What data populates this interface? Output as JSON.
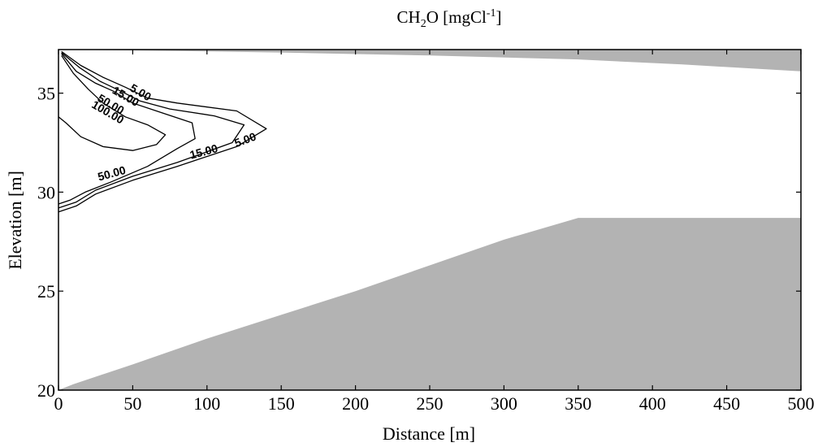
{
  "chart_data": {
    "type": "contour",
    "title": {
      "base": "CH",
      "sub": "2",
      "rest": "O  [mgCl",
      "sup": "-1",
      "end": "]"
    },
    "xlabel": "Distance [m]",
    "ylabel": "Elevation [m]",
    "xlim": [
      0,
      500
    ],
    "ylim": [
      20,
      37.2
    ],
    "xticks": [
      0,
      50,
      100,
      150,
      200,
      250,
      300,
      350,
      400,
      450,
      500
    ],
    "yticks": [
      20,
      25,
      30,
      35
    ],
    "colors": {
      "boundary_fill": "#b3b3b3",
      "contour_line": "#000000"
    },
    "top_boundary": [
      [
        0,
        37.2
      ],
      [
        60,
        37.15
      ],
      [
        150,
        37.05
      ],
      [
        250,
        36.9
      ],
      [
        350,
        36.7
      ],
      [
        420,
        36.45
      ],
      [
        500,
        36.1
      ]
    ],
    "bottom_boundary": [
      [
        0,
        20.0
      ],
      [
        10,
        20.3
      ],
      [
        50,
        21.3
      ],
      [
        100,
        22.6
      ],
      [
        150,
        23.8
      ],
      [
        200,
        25.0
      ],
      [
        250,
        26.3
      ],
      [
        300,
        27.6
      ],
      [
        350,
        28.7
      ],
      [
        500,
        28.7
      ]
    ],
    "contours": [
      {
        "level": "5.00",
        "points": [
          [
            2,
            37.1
          ],
          [
            15,
            36.4
          ],
          [
            30,
            35.8
          ],
          [
            45,
            35.3
          ],
          [
            60,
            34.75
          ],
          [
            80,
            34.5
          ],
          [
            120,
            34.1
          ],
          [
            140,
            33.2
          ],
          [
            120,
            32.3
          ],
          [
            80,
            31.3
          ],
          [
            50,
            30.6
          ],
          [
            25,
            29.9
          ],
          [
            12,
            29.3
          ],
          [
            0,
            29.0
          ]
        ],
        "labels": [
          {
            "x": 55,
            "y": 35.0,
            "angle": 30
          },
          {
            "x": 126,
            "y": 32.6,
            "angle": -20
          }
        ]
      },
      {
        "level": "15.00",
        "points": [
          [
            2,
            37.05
          ],
          [
            14,
            36.3
          ],
          [
            28,
            35.6
          ],
          [
            42,
            35.1
          ],
          [
            55,
            34.6
          ],
          [
            75,
            34.2
          ],
          [
            105,
            33.85
          ],
          [
            125,
            33.4
          ],
          [
            117,
            32.5
          ],
          [
            80,
            31.5
          ],
          [
            50,
            30.8
          ],
          [
            25,
            30.1
          ],
          [
            12,
            29.5
          ],
          [
            0,
            29.2
          ]
        ],
        "labels": [
          {
            "x": 45,
            "y": 34.8,
            "angle": 30
          },
          {
            "x": 98,
            "y": 32.0,
            "angle": -15
          }
        ]
      },
      {
        "level": "50.00",
        "points": [
          [
            2,
            37.0
          ],
          [
            12,
            36.1
          ],
          [
            25,
            35.5
          ],
          [
            37,
            35.1
          ],
          [
            50,
            34.5
          ],
          [
            70,
            34.0
          ],
          [
            90,
            33.5
          ],
          [
            92,
            32.7
          ],
          [
            80,
            32.2
          ],
          [
            60,
            31.3
          ],
          [
            35,
            30.5
          ],
          [
            18,
            30.0
          ],
          [
            8,
            29.6
          ],
          [
            0,
            29.4
          ]
        ],
        "labels": [
          {
            "x": 35,
            "y": 34.4,
            "angle": 30
          },
          {
            "x": 36,
            "y": 30.9,
            "angle": -15
          }
        ]
      },
      {
        "level": "100.00",
        "points": [
          [
            2,
            36.9
          ],
          [
            10,
            36.0
          ],
          [
            20,
            35.2
          ],
          [
            30,
            34.5
          ],
          [
            45,
            33.8
          ],
          [
            60,
            33.4
          ],
          [
            72,
            32.9
          ],
          [
            66,
            32.4
          ],
          [
            50,
            32.1
          ],
          [
            30,
            32.3
          ],
          [
            15,
            32.8
          ],
          [
            5,
            33.5
          ],
          [
            0,
            33.8
          ]
        ],
        "labels": [
          {
            "x": 33,
            "y": 34.0,
            "angle": 30
          }
        ]
      }
    ]
  }
}
